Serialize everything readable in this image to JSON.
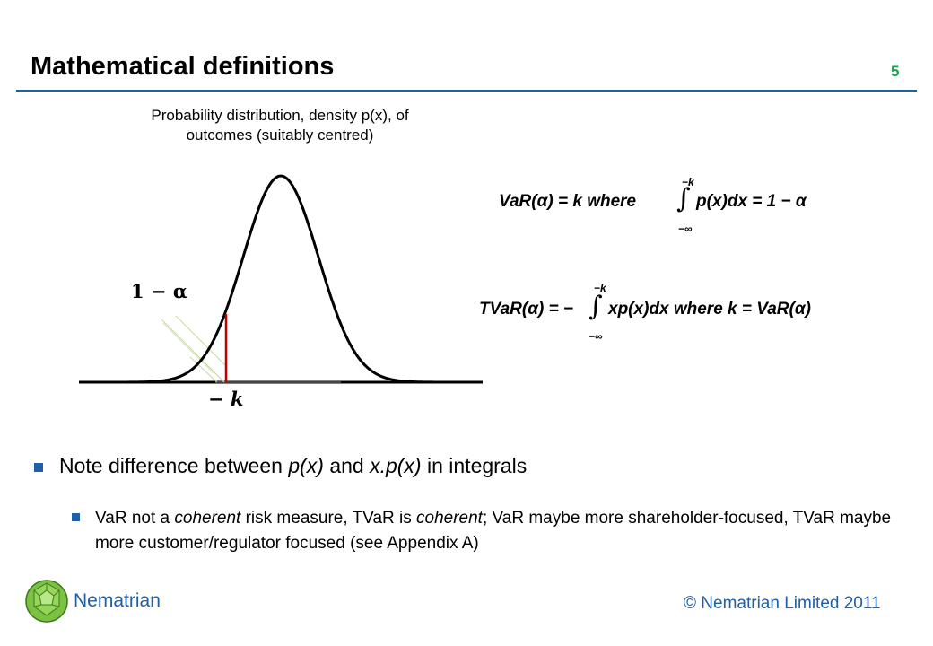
{
  "slide": {
    "title": "Mathematical definitions",
    "number": "5"
  },
  "figure": {
    "caption_line1": "Probability distribution, density p(x), of",
    "caption_line2": "outcomes (suitably centred)",
    "label_alpha": "1 − α",
    "label_k": "− k"
  },
  "equations": {
    "var": {
      "lhs": "VaR(α) = k  where",
      "integrand": "p(x)dx = 1 − α",
      "upper": "−k",
      "lower": "−∞"
    },
    "tvar": {
      "lhs": "TVaR(α) = −",
      "integrand": "xp(x)dx where  k = VaR(α)",
      "upper": "−k",
      "lower": "−∞"
    }
  },
  "bullets": {
    "b1_prefix": "Note difference between ",
    "b1_term1": "p(x)",
    "b1_mid": " and ",
    "b1_term2": "x.p(x)",
    "b1_suffix": " in integrals",
    "b2_part1": "VaR not a ",
    "b2_em1": "coherent",
    "b2_part2": " risk measure, TVaR is ",
    "b2_em2": "coherent",
    "b2_part3": "; VaR maybe more shareholder-focused, TVaR maybe more customer/regulator focused (see Appendix A)"
  },
  "footer": {
    "brand": "Nematrian",
    "copyright": "© Nematrian Limited 2011"
  },
  "colors": {
    "title_rule": "#1f5fa8",
    "slide_number": "#1aa34a",
    "bullet": "#1f5fa8",
    "cutoff_line": "#c00000",
    "brand": "#1f5fa8"
  }
}
